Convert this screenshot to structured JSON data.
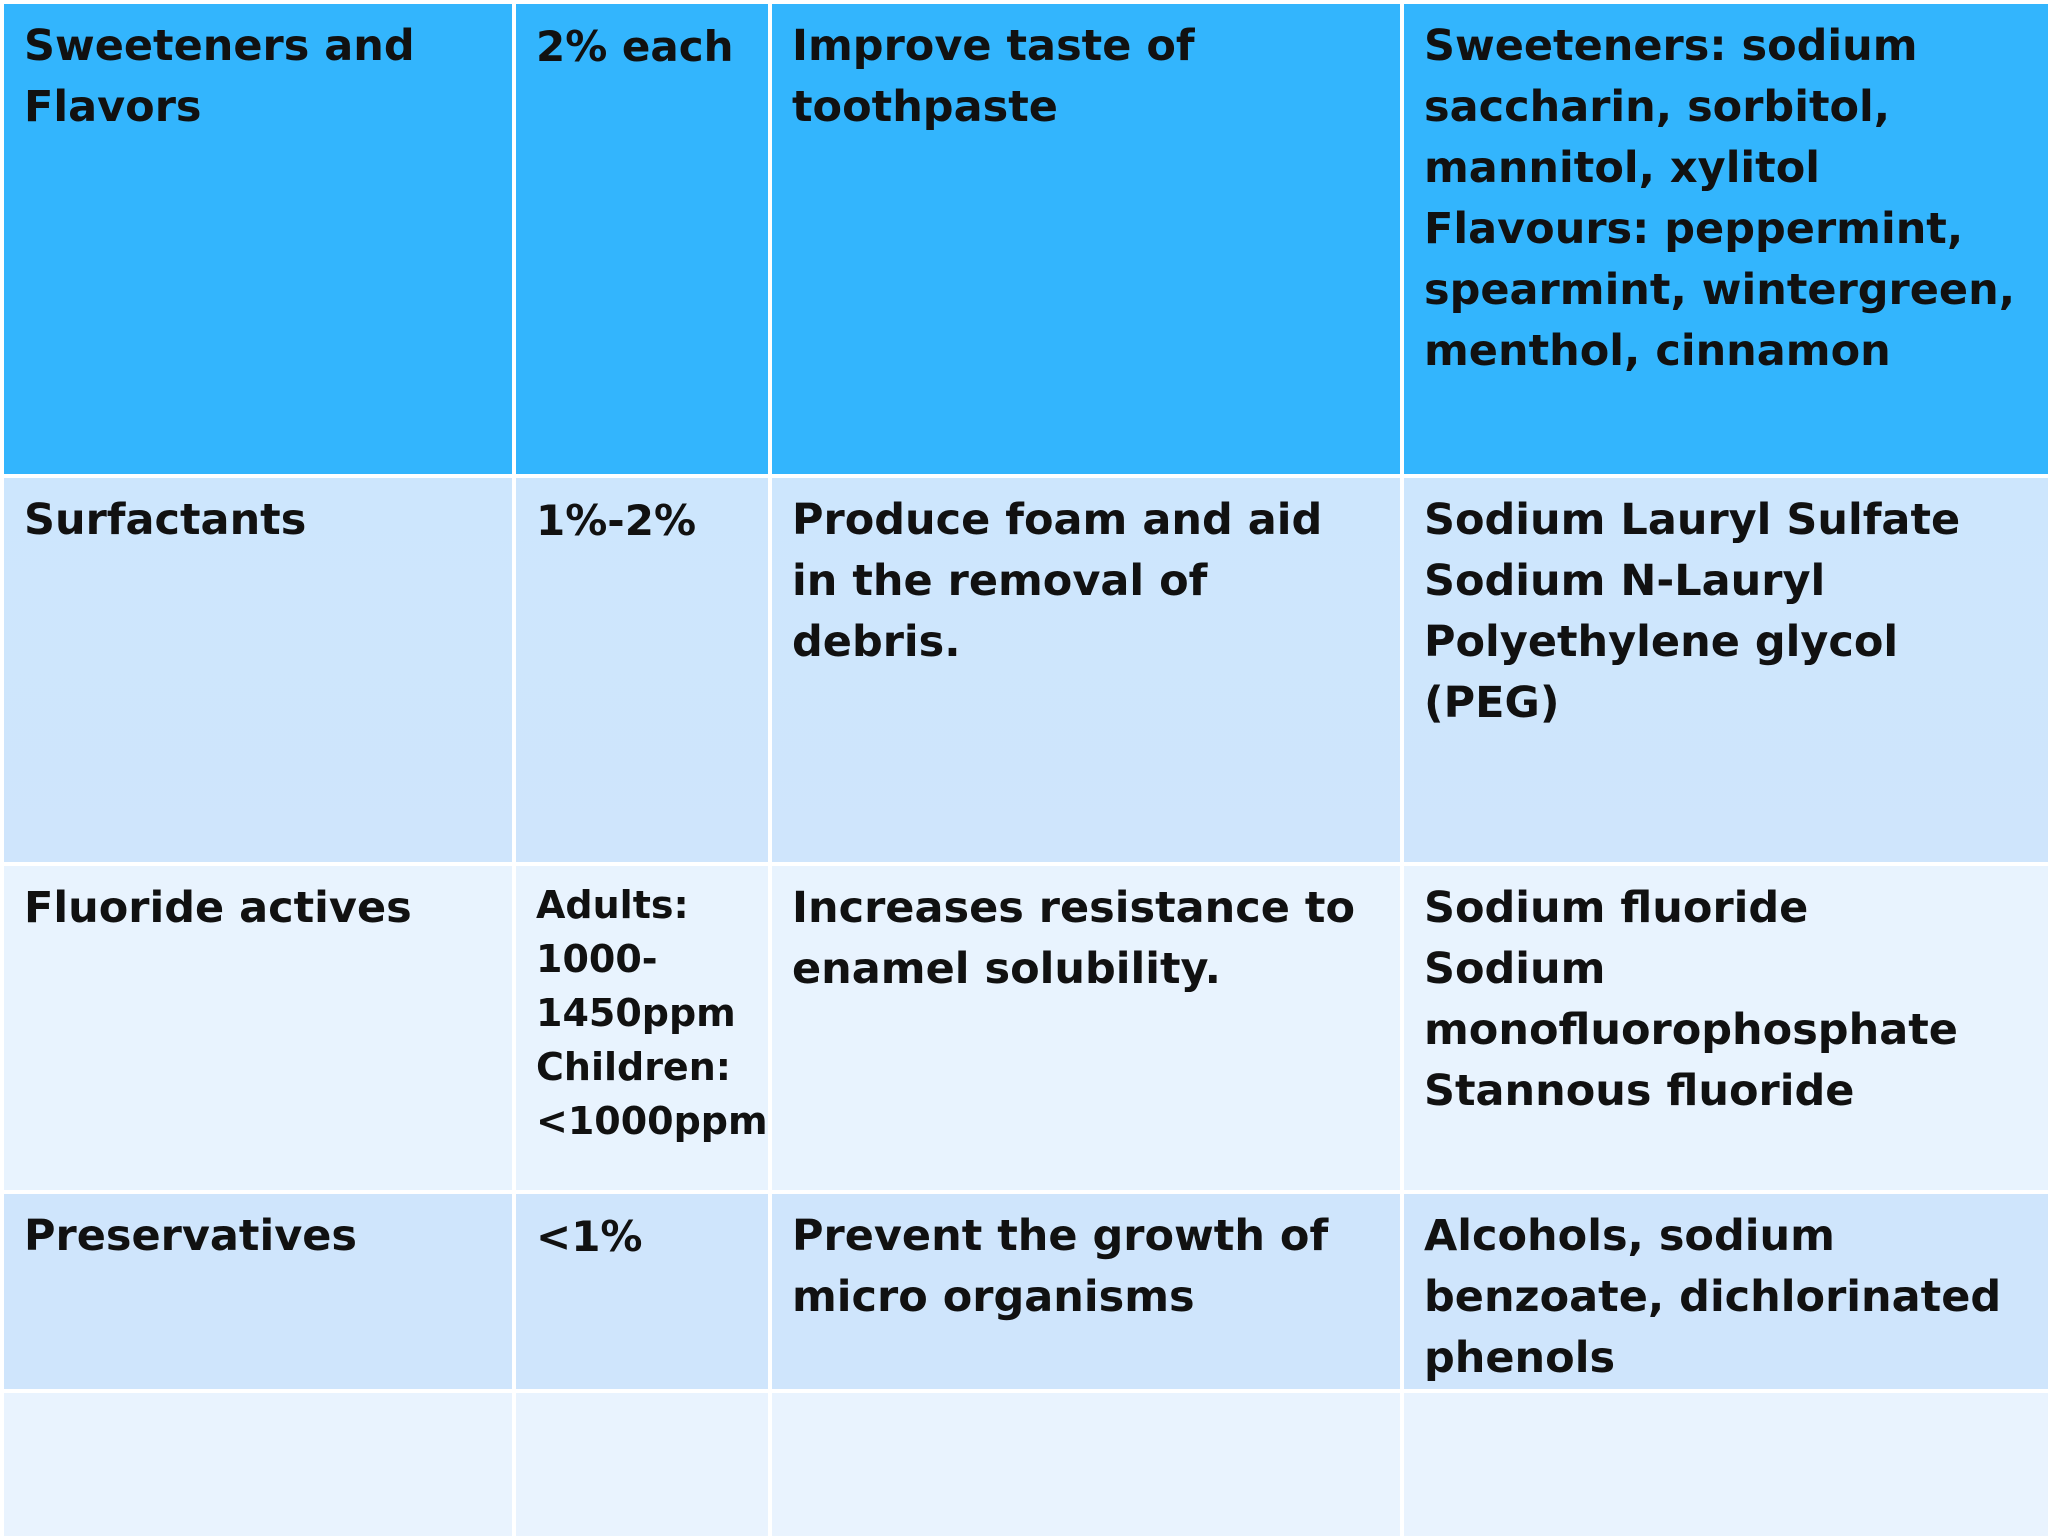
{
  "table": {
    "rows": [
      {
        "component": "Sweeteners and Flavors",
        "concentration": "2% each",
        "function": "Improve taste of toothpaste",
        "examples": "Sweeteners: sodium saccharin, sorbitol, mannitol, xylitol\nFlavours:  peppermint, spearmint, wintergreen, menthol, cinnamon"
      },
      {
        "component": "Surfactants",
        "concentration": "1%-2%",
        "function": "Produce foam and aid in the removal of debris.",
        "examples": "Sodium Lauryl Sulfate\nSodium N-Lauryl\nPolyethylene glycol (PEG)"
      },
      {
        "component": "Fluoride actives",
        "concentration": "Adults: 1000-1450ppm\nChildren:<1000ppm",
        "function": "Increases resistance to enamel solubility.",
        "examples": "Sodium fluoride\nSodium monofluorophosphate\nStannous fluoride"
      },
      {
        "component": "Preservatives",
        "concentration": "<1%",
        "function": "Prevent the growth of micro organisms",
        "examples": "Alcohols, sodium benzoate, dichlorinated phenols"
      },
      {
        "component": "",
        "concentration": "",
        "function": "",
        "examples": ""
      }
    ]
  },
  "colors": {
    "header_row": "#33b5fd",
    "light_row": "#cfe5fc",
    "lighter_row": "#e8f3fe",
    "border": "#ffffff",
    "text": "#111111"
  }
}
